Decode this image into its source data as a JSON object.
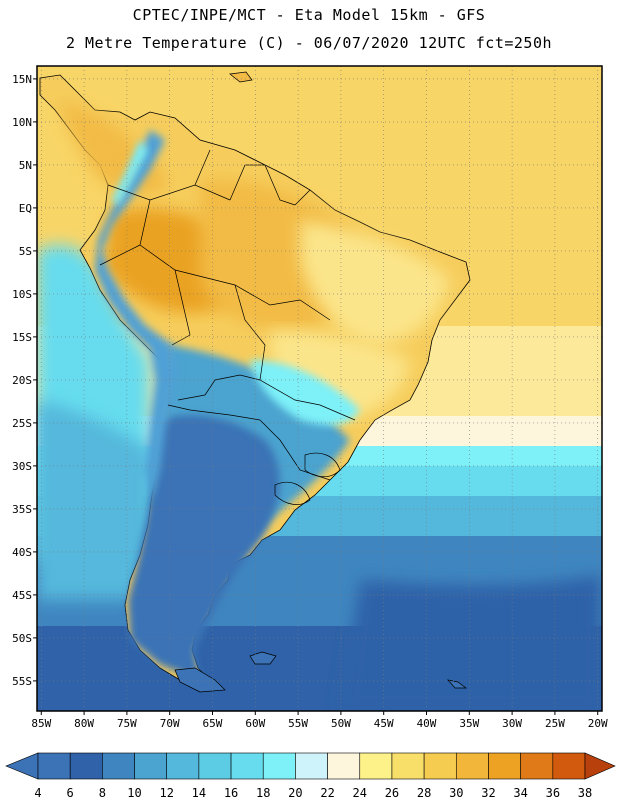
{
  "header": {
    "line1": "CPTEC/INPE/MCT -  Eta Model 15km - GFS",
    "line2": "2 Metre Temperature (C) - 06/07/2020 12UTC fct=250h"
  },
  "axes": {
    "lat_labels": [
      "15N",
      "10N",
      "5N",
      "EQ",
      "5S",
      "10S",
      "15S",
      "20S",
      "25S",
      "30S",
      "35S",
      "40S",
      "45S",
      "50S",
      "55S"
    ],
    "lon_labels": [
      "85W",
      "80W",
      "75W",
      "70W",
      "65W",
      "60W",
      "55W",
      "50W",
      "45W",
      "40W",
      "35W",
      "30W",
      "25W",
      "20W"
    ]
  },
  "colorbar": {
    "labels": [
      "4",
      "6",
      "8",
      "10",
      "12",
      "14",
      "16",
      "18",
      "20",
      "22",
      "24",
      "26",
      "28",
      "30",
      "32",
      "34",
      "36",
      "38"
    ],
    "colors": [
      "#3b73b6",
      "#2f62a8",
      "#3f86c0",
      "#4ba3cf",
      "#54b8dc",
      "#5ccbe4",
      "#66dcee",
      "#7df0f8",
      "#cff3fb",
      "#fdf6dd",
      "#fdf28a",
      "#f8df6a",
      "#f5cb50",
      "#f1b63a",
      "#eda224",
      "#e07a18",
      "#d25a0e",
      "#c0410a"
    ],
    "left_arrow_color": "#3b73b6",
    "right_arrow_color": "#b8400c"
  },
  "palette": {
    "ocean_cold": "#2f62a8",
    "ocean_cool": "#3f86c0",
    "ocean_mid": "#54b8dc",
    "ocean_cyan": "#66dcee",
    "ocean_light": "#7df0f8",
    "ocean_warm": "#fdf6dd",
    "ocean_yellow": "#fde99a",
    "ocean_gold": "#f8d567",
    "land_hot": "#eaa224",
    "land_warm": "#f2bb45",
    "land_mid": "#f6cd5c",
    "land_pale": "#fbe58a",
    "land_cold": "#3b73b6",
    "land_cool": "#4ba3cf",
    "land_andes": "#4fa0d6",
    "border": "#000000"
  }
}
